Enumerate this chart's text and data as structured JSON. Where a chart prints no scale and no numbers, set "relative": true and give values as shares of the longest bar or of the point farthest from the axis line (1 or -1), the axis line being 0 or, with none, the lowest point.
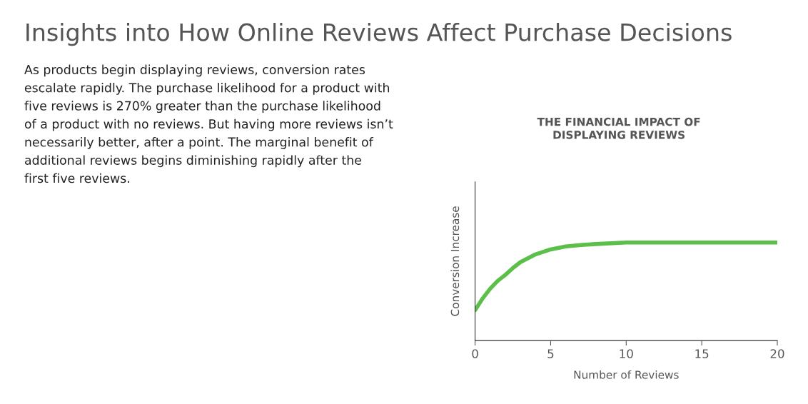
{
  "chart_data": {
    "type": "line",
    "title": "Insights into How Online Reviews Affect Purchase Decisions",
    "subtitle": "THE FINANCIAL IMPACT OF\nDISPLAYING REVIEWS",
    "annotations": [
      "As products begin displaying reviews, conversion rates\nescalate rapidly. The purchase likelihood for a product with\nfive reviews is 270% greater than the purchase likelihood\nof a product with no reviews. But having more reviews isn’t\nnecessarily better, after a point. The marginal benefit of\nadditional reviews begins diminishing rapidly after the\nfirst five reviews."
    ],
    "xlabel": "Number of Reviews",
    "ylabel": "Conversion Increase",
    "relative": true,
    "x": [
      0,
      0.5,
      1,
      1.5,
      2,
      2.5,
      3,
      3.5,
      4,
      5,
      6,
      7,
      8,
      10,
      12,
      15,
      20
    ],
    "series": [
      {
        "color": "#5bbf4a",
        "values": [
          0.31,
          0.43,
          0.53,
          0.61,
          0.67,
          0.74,
          0.8,
          0.84,
          0.88,
          0.93,
          0.96,
          0.975,
          0.985,
          1,
          1,
          1,
          1
        ]
      }
    ],
    "xlim": [
      0,
      20
    ],
    "xticks": [
      0,
      5,
      10,
      15,
      20
    ],
    "grid": false,
    "marker": "none",
    "line_style": "solid"
  }
}
